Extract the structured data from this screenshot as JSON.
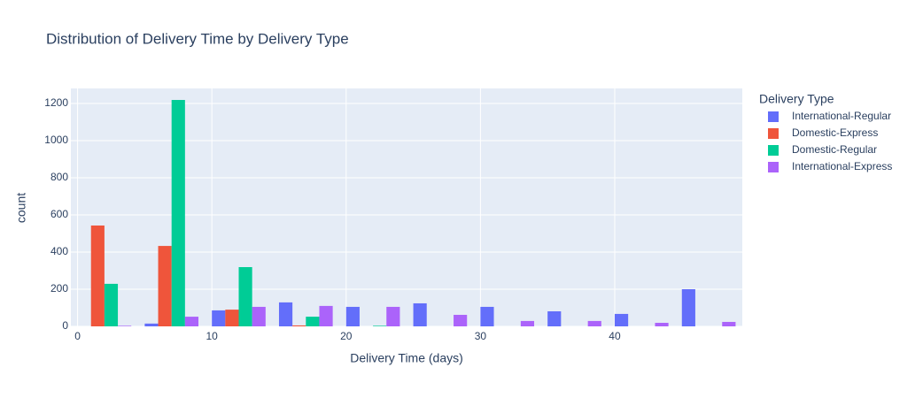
{
  "chart_data": {
    "type": "histogram",
    "title": "Distribution of Delivery Time by Delivery Type",
    "x_label": "Delivery Time (days)",
    "y_label": "count",
    "legend_title": "Delivery Type",
    "legend_position": "right",
    "bins": [
      -0.5,
      4.5,
      9.5,
      14.5,
      19.5,
      24.5,
      29.5,
      34.5,
      39.5,
      44.5,
      49.5
    ],
    "series": [
      {
        "name": "International-Regular",
        "color": "#636efa",
        "values": [
          0,
          15,
          86,
          129,
          105,
          124,
          105,
          81,
          67,
          200
        ]
      },
      {
        "name": "Domestic-Express",
        "color": "#ef553b",
        "values": [
          543,
          433,
          90,
          5,
          0,
          0,
          0,
          0,
          0,
          0
        ]
      },
      {
        "name": "Domestic-Regular",
        "color": "#00cc96",
        "values": [
          229,
          1219,
          319,
          52,
          3,
          0,
          0,
          0,
          0,
          0
        ]
      },
      {
        "name": "International-Express",
        "color": "#ab63fa",
        "values": [
          3,
          52,
          105,
          110,
          105,
          62,
          29,
          29,
          19,
          24
        ]
      }
    ],
    "xlim": [
      -0.5,
      49.5
    ],
    "xticks": [
      0,
      10,
      20,
      30,
      40
    ],
    "ylim": [
      0,
      1281
    ],
    "yticks": [
      0,
      200,
      400,
      600,
      800,
      1000,
      1200
    ],
    "grid": true
  }
}
